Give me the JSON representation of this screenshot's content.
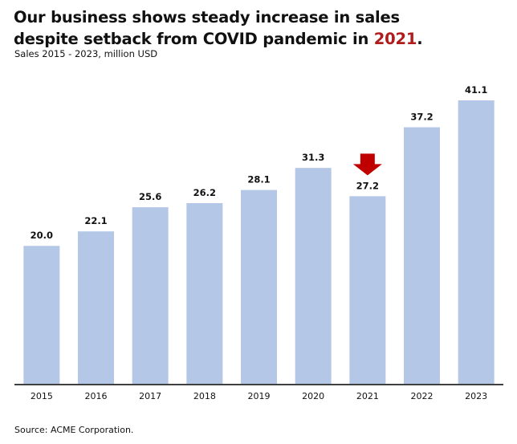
{
  "chart_data": {
    "type": "bar",
    "title_parts": [
      "Our business shows steady increase in sales",
      "despite setback from COVID pandemic in ",
      "2021",
      "."
    ],
    "subtitle": "Sales 2015 - 2023, million USD",
    "source": "Source: ACME Corporation.",
    "categories": [
      "2015",
      "2016",
      "2017",
      "2018",
      "2019",
      "2020",
      "2021",
      "2022",
      "2023"
    ],
    "values": [
      20.0,
      22.1,
      25.6,
      26.2,
      28.1,
      31.3,
      27.2,
      37.2,
      41.1
    ],
    "value_labels": [
      "20.0",
      "22.1",
      "25.6",
      "26.2",
      "28.1",
      "31.3",
      "27.2",
      "37.2",
      "41.1"
    ],
    "xlabel": "",
    "ylabel": "",
    "ylim": [
      0,
      41.1
    ],
    "grid": false,
    "y_axis_visible": false,
    "highlight": {
      "category": "2021",
      "marker": "down-arrow-icon",
      "color": "#c00000"
    },
    "colors": {
      "bar": "#b4c7e7",
      "axis": "#000000",
      "highlight_text": "#b01c1c"
    }
  }
}
